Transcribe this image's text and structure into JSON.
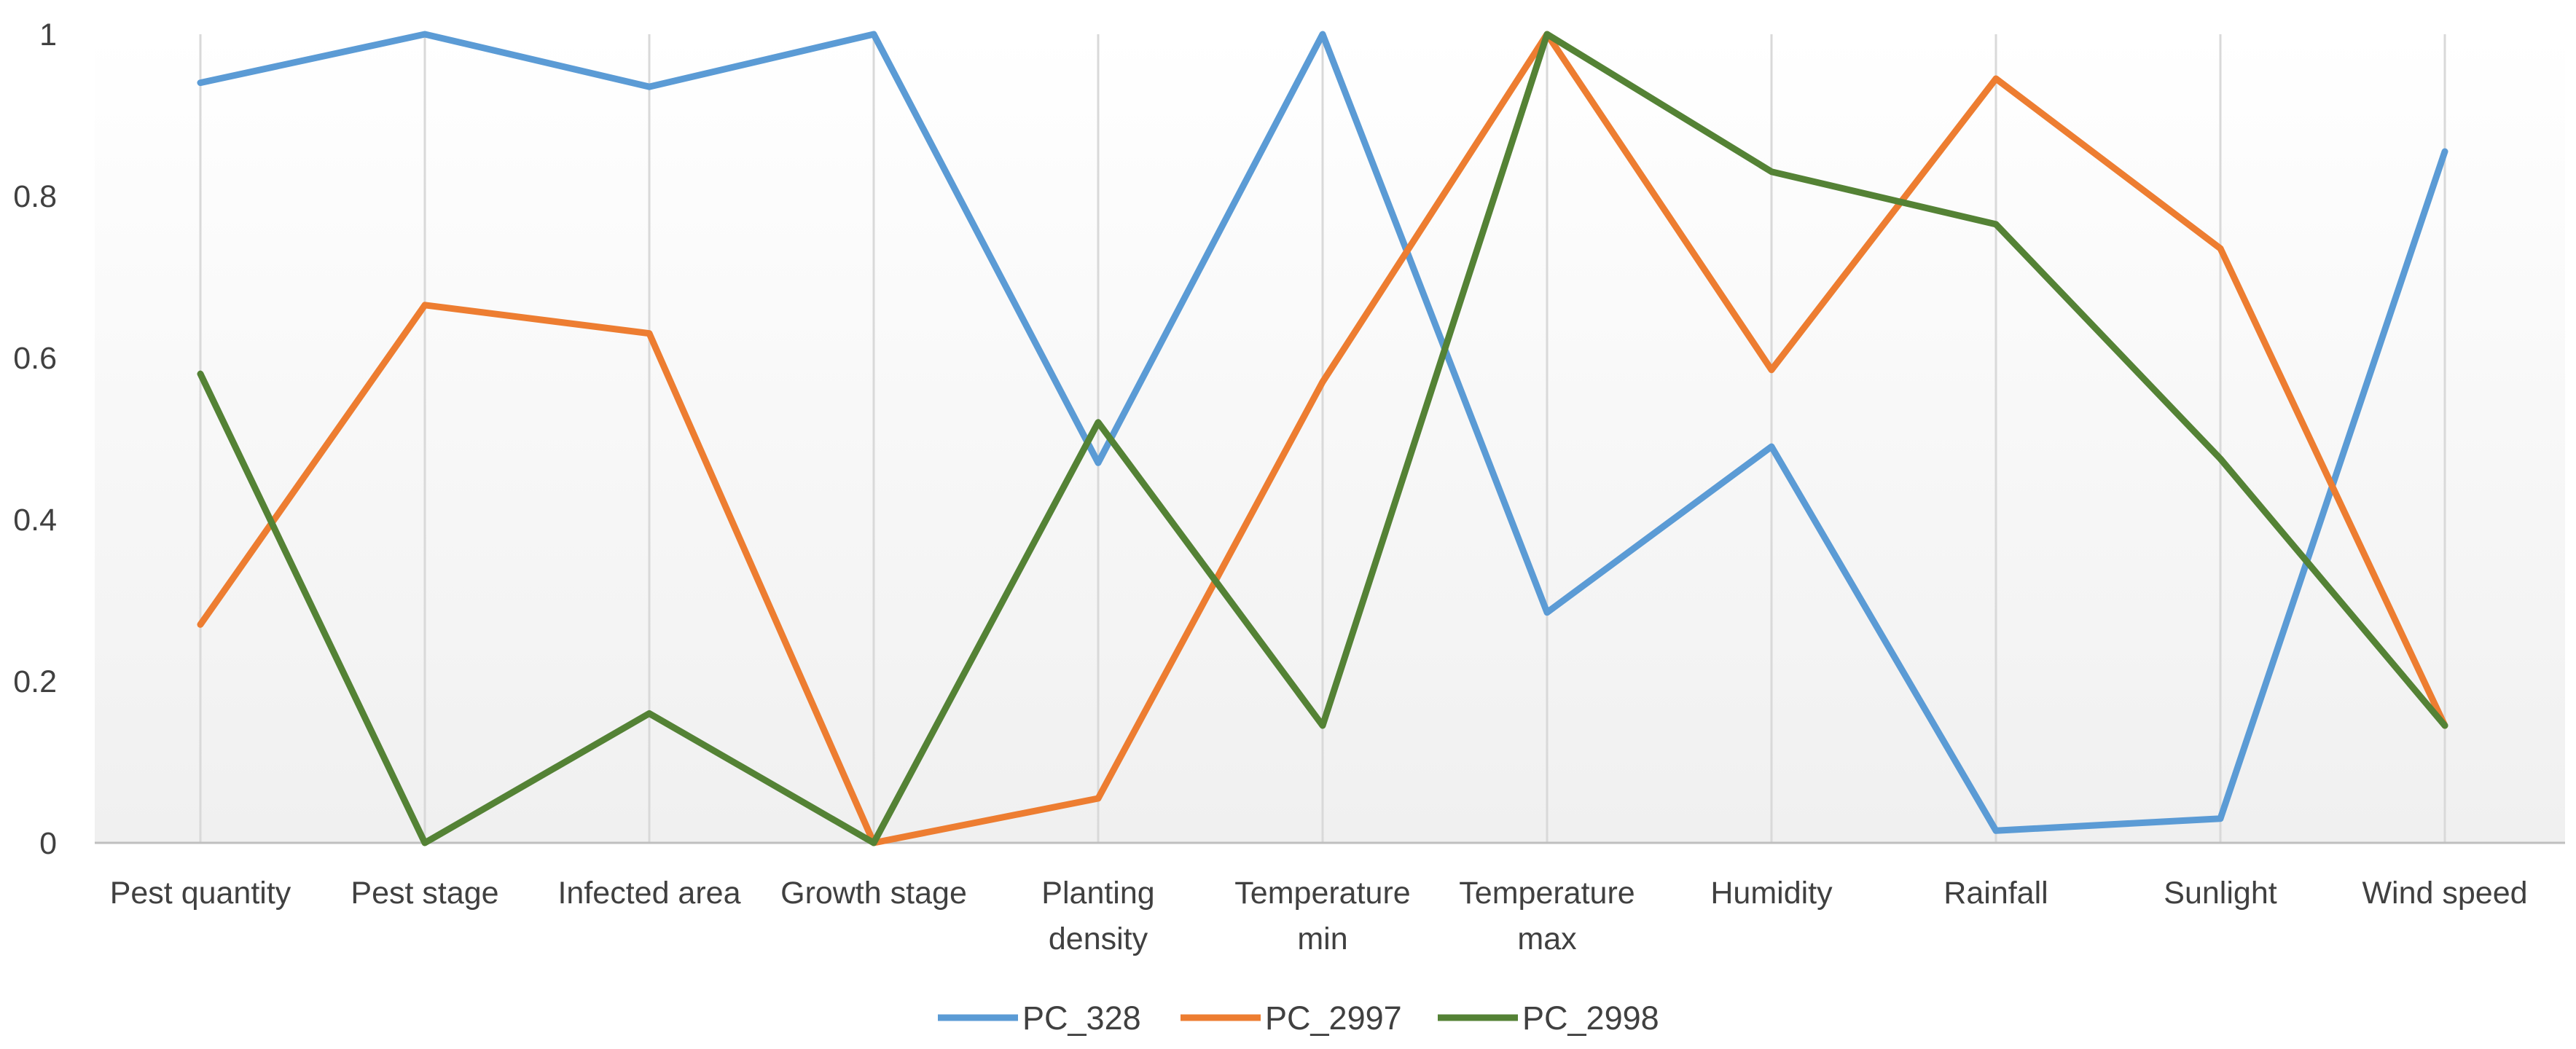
{
  "chart_data": {
    "type": "line",
    "title": "",
    "xlabel": "",
    "ylabel": "",
    "ylim": [
      0,
      1
    ],
    "y_ticks": [
      "0",
      "0.2",
      "0.4",
      "0.6",
      "0.8",
      "1"
    ],
    "y_tick_values": [
      0,
      0.2,
      0.4,
      0.6,
      0.8,
      1
    ],
    "grid": "vertical",
    "legend_position": "bottom",
    "categories": [
      [
        "Pest quantity"
      ],
      [
        "Pest stage"
      ],
      [
        "Infected area"
      ],
      [
        "Growth stage"
      ],
      [
        "Planting",
        "density"
      ],
      [
        "Temperature",
        "min"
      ],
      [
        "Temperature",
        "max"
      ],
      [
        "Humidity"
      ],
      [
        "Rainfall"
      ],
      [
        "Sunlight"
      ],
      [
        "Wind speed"
      ]
    ],
    "series": [
      {
        "name": "PC_328",
        "color": "#5B9BD5",
        "values": [
          0.94,
          1.0,
          0.935,
          1.0,
          0.47,
          1.0,
          0.285,
          0.49,
          0.015,
          0.03,
          0.855
        ]
      },
      {
        "name": "PC_2997",
        "color": "#ED7D31",
        "values": [
          0.27,
          0.665,
          0.63,
          0.0,
          0.055,
          0.57,
          1.0,
          0.585,
          0.945,
          0.735,
          0.145
        ]
      },
      {
        "name": "PC_2998",
        "color": "#548235",
        "values": [
          0.58,
          0.0,
          0.16,
          0.0,
          0.52,
          0.145,
          1.0,
          0.83,
          0.765,
          0.475,
          0.145
        ]
      }
    ]
  }
}
